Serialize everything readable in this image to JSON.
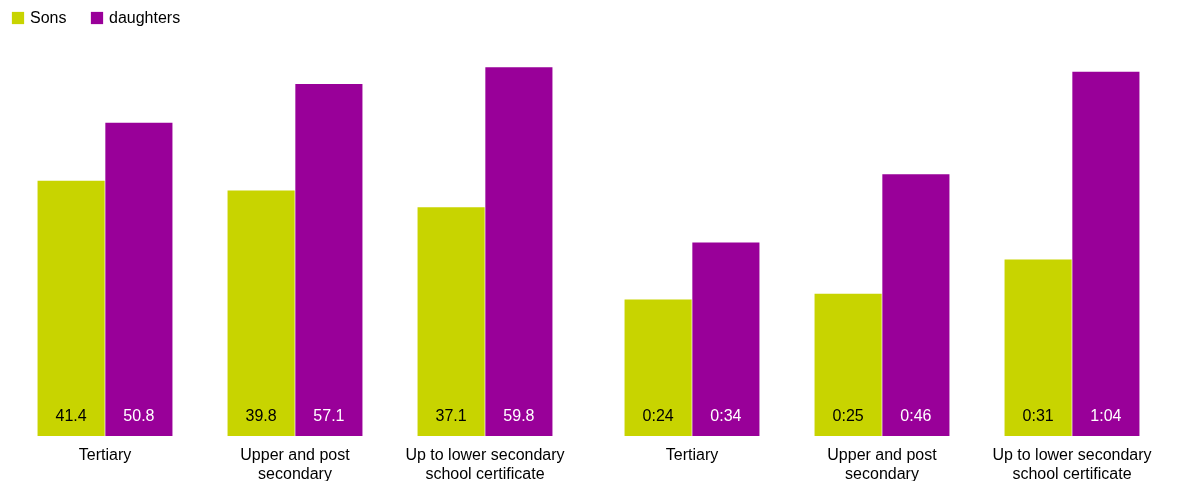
{
  "chart_data": [
    {
      "type": "bar",
      "categories": [
        "Tertiary",
        "Upper and post secondary",
        "Up to lower secondary school certificate"
      ],
      "series": [
        {
          "name": "Sons",
          "color": "#c8d400",
          "values": [
            41.4,
            39.8,
            37.1
          ]
        },
        {
          "name": "daughters",
          "color": "#990099",
          "values": [
            50.8,
            57.1,
            59.8
          ]
        }
      ],
      "data_labels": true,
      "legend": "top left",
      "tick_labels": "x"
    },
    {
      "type": "bar",
      "categories": [
        "Tertiary",
        "Upper and post secondary",
        "Up to lower secondary school certificate"
      ],
      "series": [
        {
          "color": "#c8d400",
          "values": [
            24,
            25,
            31
          ],
          "value_labels": [
            "0:24",
            "0:25",
            "0:31"
          ]
        },
        {
          "color": "#990099",
          "values": [
            34,
            46,
            64
          ],
          "value_labels": [
            "0:34",
            "0:46",
            "1:04"
          ]
        }
      ],
      "tick_labels": "x"
    }
  ]
}
